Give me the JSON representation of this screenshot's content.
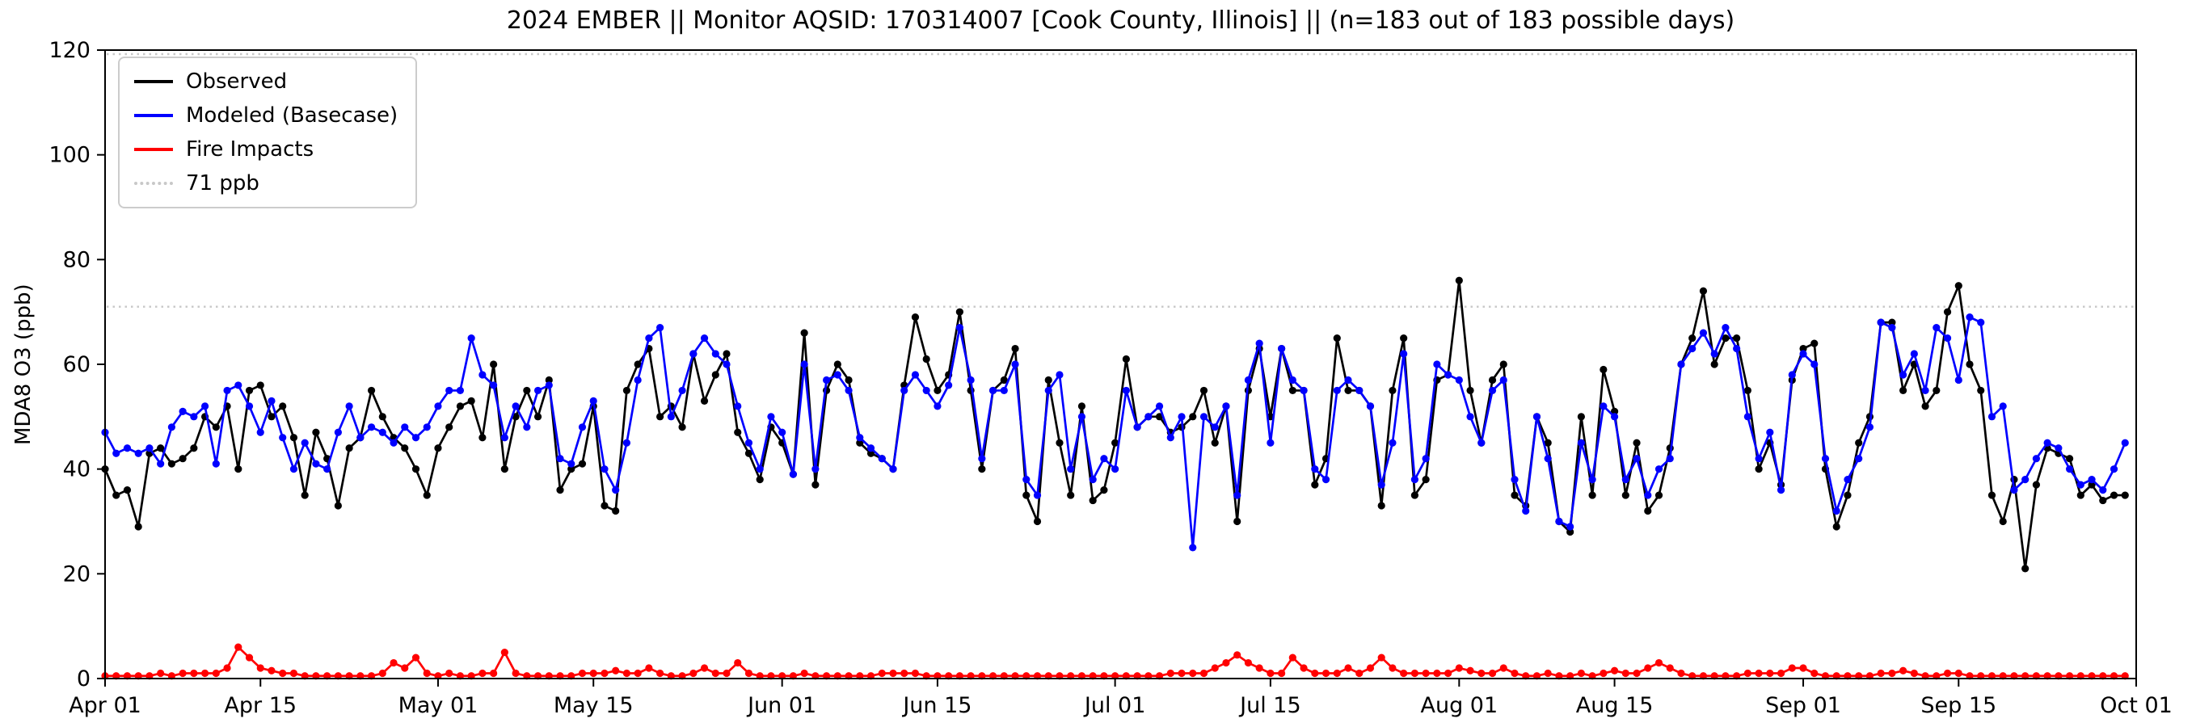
{
  "chart_data": {
    "type": "line",
    "title": "2024 EMBER || Monitor AQSID: 170314007 [Cook County, Illinois] || (n=183 out of 183 possible days)",
    "ylabel": "MDA8 O3 (ppb)",
    "ylim": [
      0,
      120
    ],
    "yticks": [
      0,
      20,
      40,
      60,
      80,
      100,
      120
    ],
    "x_count": 183,
    "xticks": [
      {
        "index": 0,
        "label": "Apr 01"
      },
      {
        "index": 14,
        "label": "Apr 15"
      },
      {
        "index": 30,
        "label": "May 01"
      },
      {
        "index": 44,
        "label": "May 15"
      },
      {
        "index": 61,
        "label": "Jun 01"
      },
      {
        "index": 75,
        "label": "Jun 15"
      },
      {
        "index": 91,
        "label": "Jul 01"
      },
      {
        "index": 105,
        "label": "Jul 15"
      },
      {
        "index": 122,
        "label": "Aug 01"
      },
      {
        "index": 136,
        "label": "Aug 15"
      },
      {
        "index": 153,
        "label": "Sep 01"
      },
      {
        "index": 167,
        "label": "Sep 15"
      },
      {
        "index": 183,
        "label": "Oct 01"
      }
    ],
    "reference_lines": [
      {
        "value": 71,
        "label": "71 ppb",
        "color": "#c8c8c8",
        "style": "dotted"
      },
      {
        "value": 120,
        "label": "",
        "color": "#c8c8c8",
        "style": "dotted"
      }
    ],
    "legend": [
      "Observed",
      "Modeled (Basecase)",
      "Fire Impacts",
      "71 ppb"
    ],
    "series": [
      {
        "name": "Observed",
        "color": "#000000",
        "values": [
          40,
          35,
          36,
          29,
          43,
          44,
          41,
          42,
          44,
          50,
          48,
          52,
          40,
          55,
          56,
          50,
          52,
          46,
          35,
          47,
          42,
          33,
          44,
          46,
          55,
          50,
          46,
          44,
          40,
          35,
          44,
          48,
          52,
          53,
          46,
          60,
          40,
          50,
          55,
          50,
          57,
          36,
          40,
          41,
          52,
          33,
          32,
          55,
          60,
          63,
          50,
          52,
          48,
          62,
          53,
          58,
          62,
          47,
          43,
          38,
          48,
          45,
          39,
          66,
          37,
          55,
          60,
          57,
          45,
          43,
          42,
          40,
          56,
          69,
          61,
          55,
          58,
          70,
          55,
          40,
          55,
          57,
          63,
          35,
          30,
          57,
          45,
          35,
          52,
          34,
          36,
          45,
          61,
          48,
          50,
          50,
          47,
          48,
          50,
          55,
          45,
          52,
          30,
          55,
          63,
          50,
          63,
          55,
          55,
          37,
          42,
          65,
          55,
          55,
          52,
          33,
          55,
          65,
          35,
          38,
          57,
          58,
          76,
          55,
          45,
          57,
          60,
          35,
          33,
          50,
          45,
          30,
          28,
          50,
          35,
          59,
          51,
          35,
          45,
          32,
          35,
          44,
          60,
          65,
          74,
          60,
          65,
          65,
          55,
          40,
          45,
          37,
          57,
          63,
          64,
          40,
          29,
          35,
          45,
          50,
          68,
          68,
          55,
          60,
          52,
          55,
          70,
          75,
          60,
          55,
          35,
          30,
          38,
          21,
          37,
          44,
          43,
          42,
          35,
          37,
          34,
          35,
          35
        ]
      },
      {
        "name": "Modeled (Basecase)",
        "color": "#0000ff",
        "values": [
          47,
          43,
          44,
          43,
          44,
          41,
          48,
          51,
          50,
          52,
          41,
          55,
          56,
          52,
          47,
          53,
          46,
          40,
          45,
          41,
          40,
          47,
          52,
          46,
          48,
          47,
          45,
          48,
          46,
          48,
          52,
          55,
          55,
          65,
          58,
          56,
          46,
          52,
          48,
          55,
          56,
          42,
          41,
          48,
          53,
          40,
          36,
          45,
          57,
          65,
          67,
          50,
          55,
          62,
          65,
          62,
          60,
          52,
          45,
          40,
          50,
          47,
          39,
          60,
          40,
          57,
          58,
          55,
          46,
          44,
          42,
          40,
          55,
          58,
          55,
          52,
          56,
          67,
          57,
          42,
          55,
          55,
          60,
          38,
          35,
          55,
          58,
          40,
          50,
          38,
          42,
          40,
          55,
          48,
          50,
          52,
          46,
          50,
          25,
          50,
          48,
          52,
          35,
          57,
          64,
          45,
          63,
          57,
          55,
          40,
          38,
          55,
          57,
          55,
          52,
          37,
          45,
          62,
          38,
          42,
          60,
          58,
          57,
          50,
          45,
          55,
          57,
          38,
          32,
          50,
          42,
          30,
          29,
          45,
          38,
          52,
          50,
          38,
          42,
          35,
          40,
          42,
          60,
          63,
          66,
          62,
          67,
          63,
          50,
          42,
          47,
          36,
          58,
          62,
          60,
          42,
          32,
          38,
          42,
          48,
          68,
          67,
          58,
          62,
          55,
          67,
          65,
          57,
          69,
          68,
          50,
          52,
          36,
          38,
          42,
          45,
          44,
          40,
          37,
          38,
          36,
          40,
          45
        ]
      },
      {
        "name": "Fire Impacts",
        "color": "#ff0000",
        "values": [
          0.5,
          0.5,
          0.5,
          0.5,
          0.5,
          1,
          0.5,
          1,
          1,
          1,
          1,
          2,
          6,
          4,
          2,
          1.5,
          1,
          1,
          0.5,
          0.5,
          0.5,
          0.5,
          0.5,
          0.5,
          0.5,
          1,
          3,
          2,
          4,
          1,
          0.5,
          1,
          0.5,
          0.5,
          1,
          1,
          5,
          1,
          0.5,
          0.5,
          0.5,
          0.5,
          0.5,
          1,
          1,
          1,
          1.5,
          1,
          1,
          2,
          1,
          0.5,
          0.5,
          1,
          2,
          1,
          1,
          3,
          1,
          0.5,
          0.5,
          0.5,
          0.5,
          1,
          0.5,
          0.5,
          0.5,
          0.5,
          0.5,
          0.5,
          1,
          1,
          1,
          1,
          0.5,
          0.5,
          0.5,
          0.5,
          0.5,
          0.5,
          0.5,
          0.5,
          0.5,
          0.5,
          0.5,
          0.5,
          0.5,
          0.5,
          0.5,
          0.5,
          0.5,
          0.5,
          0.5,
          0.5,
          0.5,
          0.5,
          1,
          1,
          1,
          1,
          2,
          3,
          4.5,
          3,
          2,
          1,
          1,
          4,
          2,
          1,
          1,
          1,
          2,
          1,
          2,
          4,
          2,
          1,
          1,
          1,
          1,
          1,
          2,
          1.5,
          1,
          1,
          2,
          1,
          0.5,
          0.5,
          1,
          0.5,
          0.5,
          1,
          0.5,
          1,
          1.5,
          1,
          1,
          2,
          3,
          2,
          1,
          0.5,
          0.5,
          0.5,
          0.5,
          0.5,
          1,
          1,
          1,
          1,
          2,
          2,
          1,
          0.5,
          0.5,
          0.5,
          0.5,
          0.5,
          1,
          1,
          1.5,
          1,
          0.5,
          0.5,
          1,
          1,
          0.5,
          0.5,
          0.5,
          0.5,
          0.5,
          0.5,
          0.5,
          0.5,
          0.5,
          0.5,
          0.5,
          0.5,
          0.5,
          0.5,
          0.5
        ]
      }
    ]
  }
}
